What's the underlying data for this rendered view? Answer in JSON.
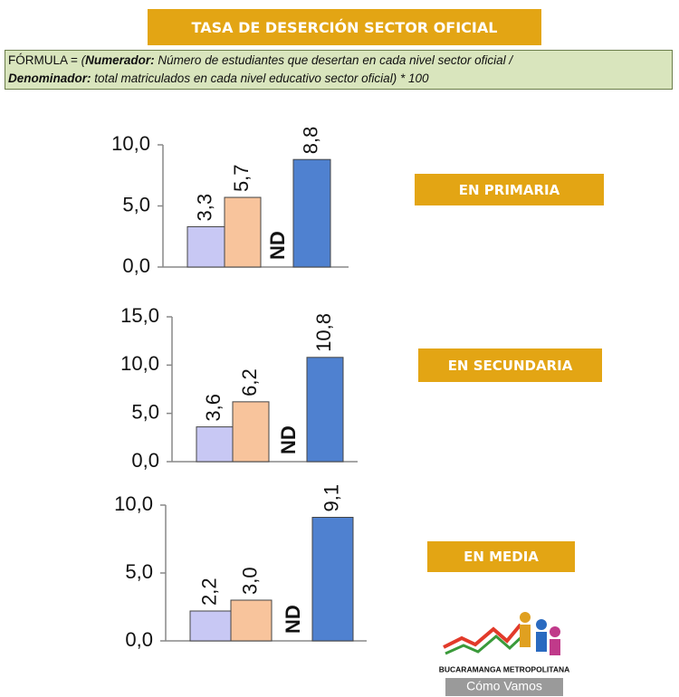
{
  "header": {
    "title": "TASA DE DESERCIÓN SECTOR OFICIAL"
  },
  "formula": {
    "prefix": "FÓRMULA = ",
    "open": "(",
    "numerator_label": "Numerador:",
    "numerator": " Número de estudiantes que desertan en cada nivel sector oficial /",
    "denominator_label": "Denominador:",
    "denominator": " total matriculados en cada nivel educativo sector oficial) * 100"
  },
  "chart_data": [
    {
      "type": "bar",
      "panel_label": "EN PRIMARIA",
      "values": [
        3.3,
        5.7,
        null,
        8.8
      ],
      "value_labels": [
        "3,3",
        "5,7",
        "ND",
        "8,8"
      ],
      "colors": [
        "#c8c8f4",
        "#f8c49c",
        null,
        "#4f81d0"
      ],
      "ylim": [
        0,
        10
      ],
      "yticks": [
        {
          "value": 0,
          "label": "0,0"
        },
        {
          "value": 5,
          "label": "5,0"
        },
        {
          "value": 10,
          "label": "10,0"
        }
      ]
    },
    {
      "type": "bar",
      "panel_label": "EN SECUNDARIA",
      "values": [
        3.6,
        6.2,
        null,
        10.8
      ],
      "value_labels": [
        "3,6",
        "6,2",
        "ND",
        "10,8"
      ],
      "colors": [
        "#c8c8f4",
        "#f8c49c",
        null,
        "#4f81d0"
      ],
      "ylim": [
        0,
        15
      ],
      "yticks": [
        {
          "value": 0,
          "label": "0,0"
        },
        {
          "value": 5,
          "label": "5,0"
        },
        {
          "value": 10,
          "label": "10,0"
        },
        {
          "value": 15,
          "label": "15,0"
        }
      ]
    },
    {
      "type": "bar",
      "panel_label": "EN MEDIA",
      "values": [
        2.2,
        3.0,
        null,
        9.1
      ],
      "value_labels": [
        "2,2",
        "3,0",
        "ND",
        "9,1"
      ],
      "colors": [
        "#c8c8f4",
        "#f8c49c",
        null,
        "#4f81d0"
      ],
      "ylim": [
        0,
        10
      ],
      "yticks": [
        {
          "value": 0,
          "label": "0,0"
        },
        {
          "value": 5,
          "label": "5,0"
        },
        {
          "value": 10,
          "label": "10,0"
        }
      ]
    }
  ],
  "logo": {
    "line1": "BUCARAMANGA METROPOLITANA",
    "line2": "Cómo Vamos"
  }
}
